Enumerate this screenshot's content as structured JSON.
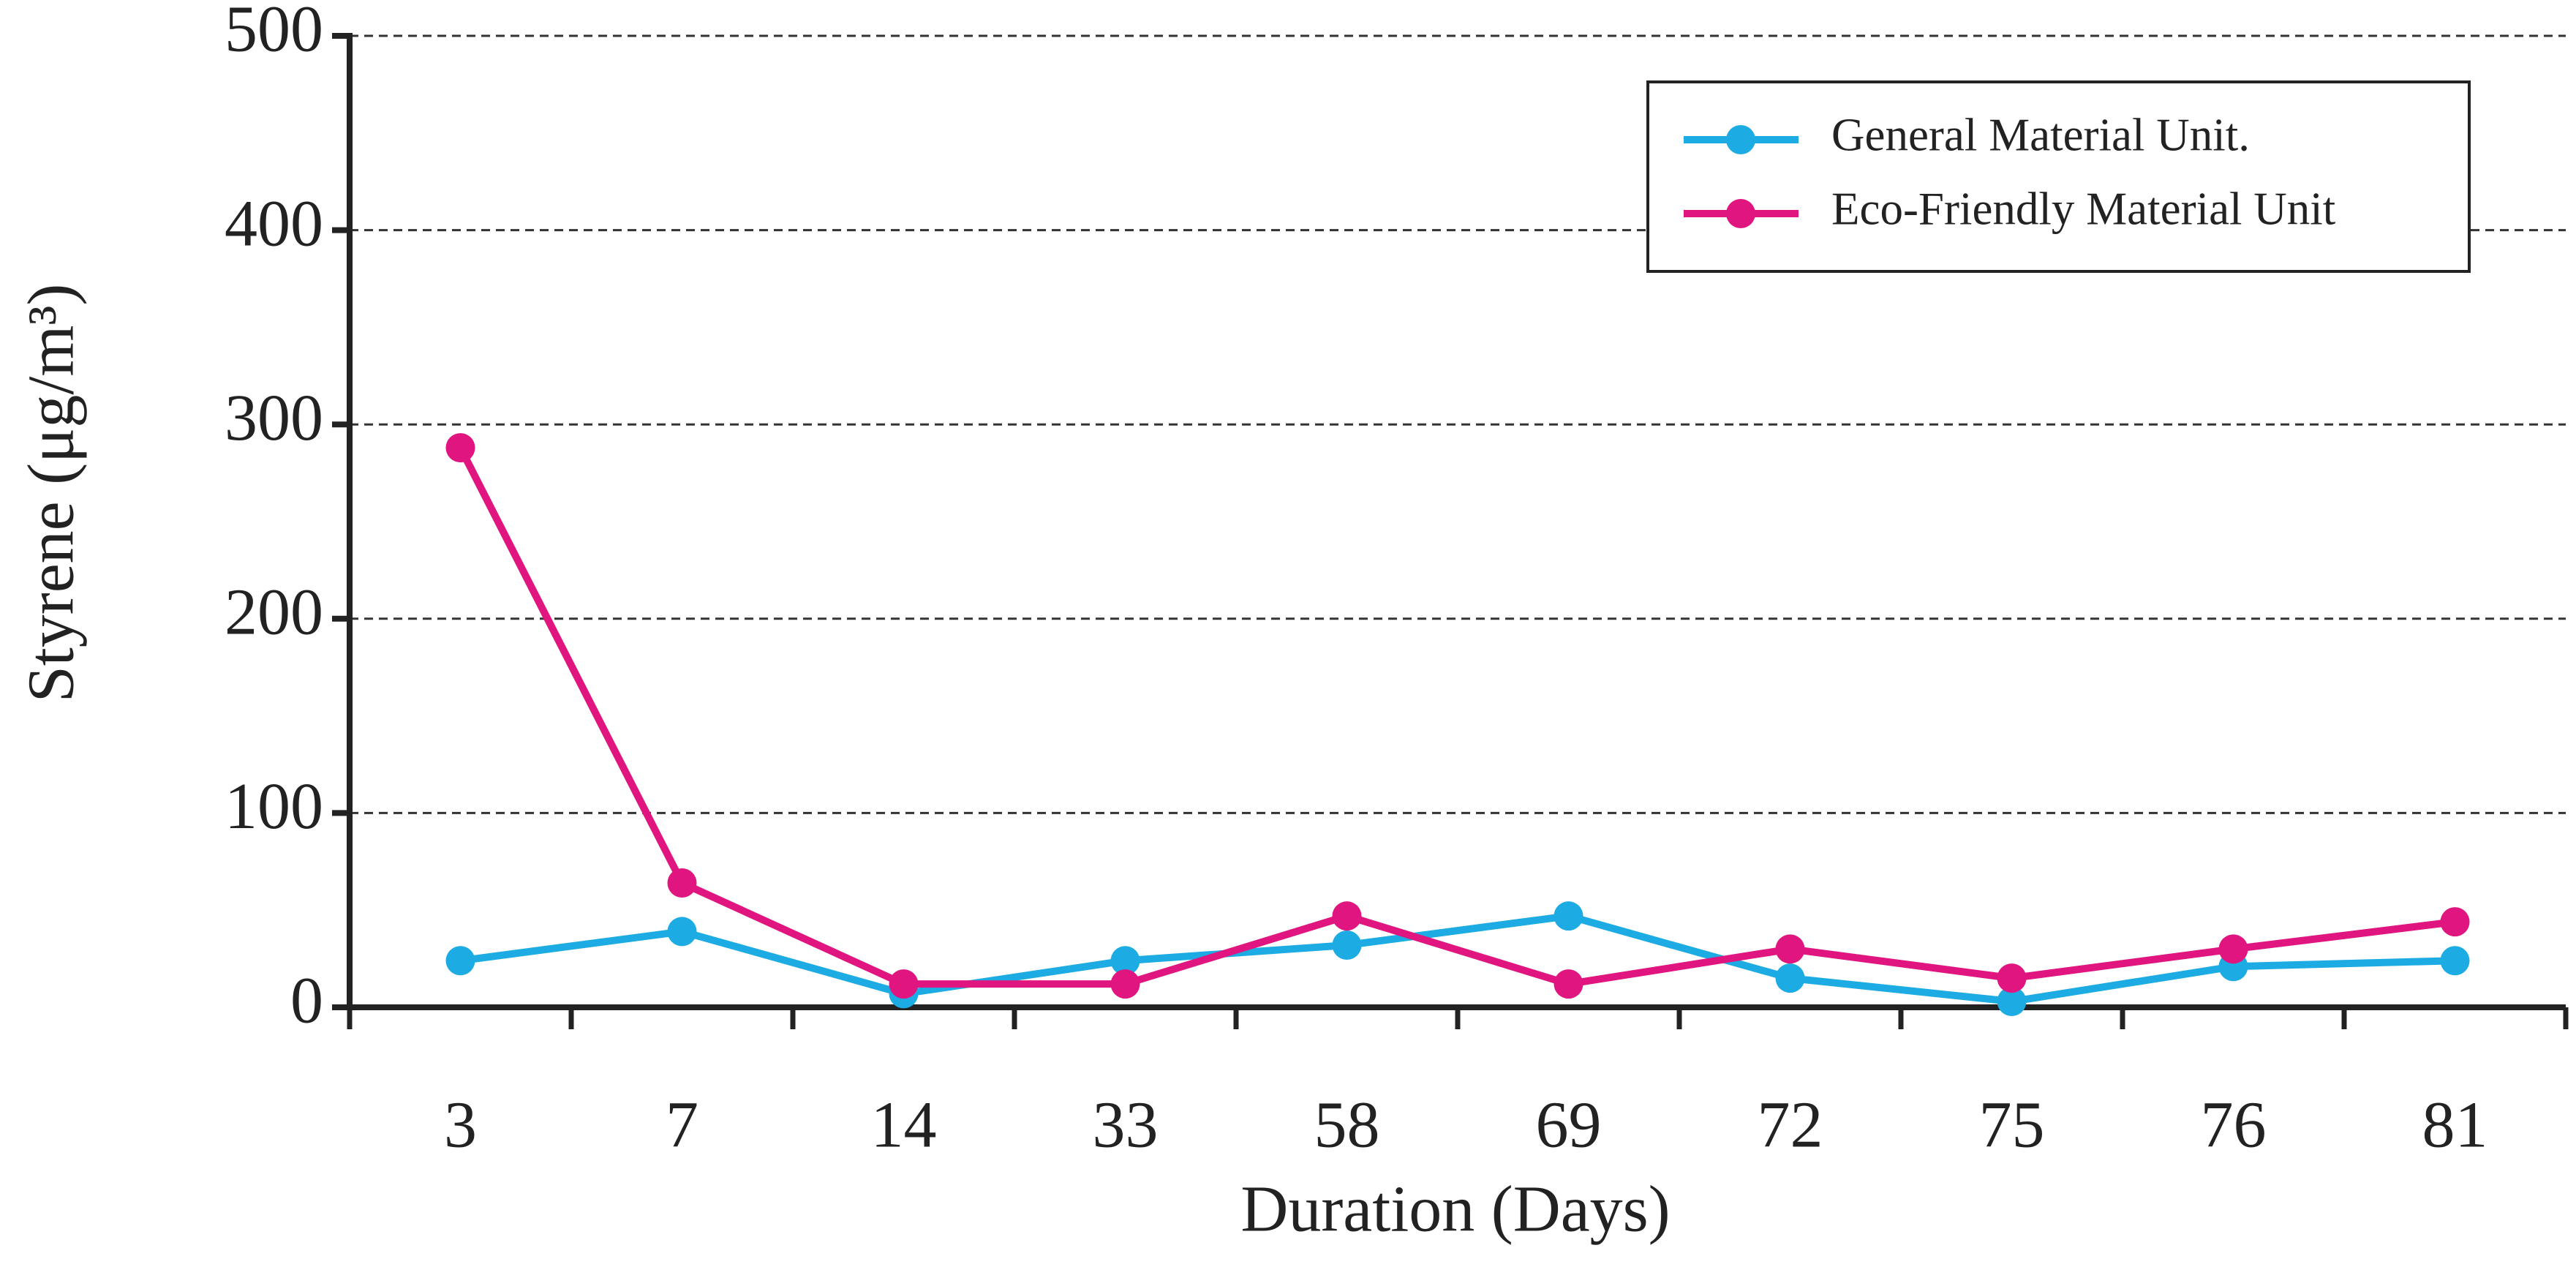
{
  "chart_data": {
    "type": "line",
    "xlabel": "Duration (Days)",
    "ylabel": "Styrene (μg/m³)",
    "categories": [
      "3",
      "7",
      "14",
      "33",
      "58",
      "69",
      "72",
      "75",
      "76",
      "81"
    ],
    "series": [
      {
        "name": "General Material Unit.",
        "color": "#1cace3",
        "values": [
          24,
          39,
          7,
          24,
          32,
          47,
          15,
          3,
          21,
          24
        ]
      },
      {
        "name": "Eco-Friendly Material Unit",
        "color": "#e0157f",
        "values": [
          288,
          64,
          12,
          12,
          47,
          12,
          30,
          15,
          30,
          44
        ]
      }
    ],
    "ylim": [
      0,
      500
    ],
    "yticks": [
      0,
      100,
      200,
      300,
      400,
      500
    ],
    "grid": true,
    "legend": "upper right"
  }
}
